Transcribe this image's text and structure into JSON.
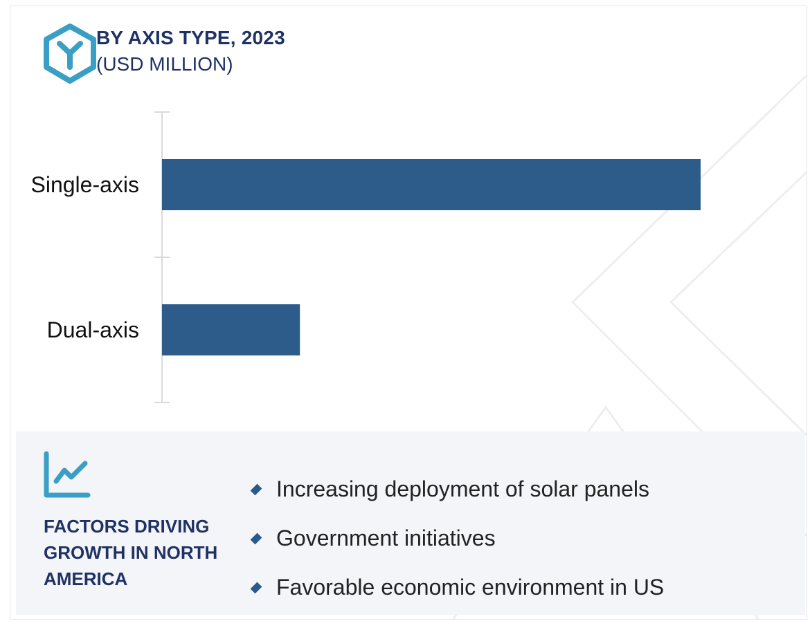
{
  "header": {
    "title": "BY AXIS TYPE, 2023",
    "subtitle": "(USD MILLION)",
    "icon": "axis-cube-icon"
  },
  "colors": {
    "bar": "#2d5b8a",
    "title": "#1f3263",
    "icon": "#3a9fc4",
    "panel": "#f3f5f9"
  },
  "chart_data": {
    "type": "bar",
    "orientation": "horizontal",
    "categories": [
      "Single-axis",
      "Dual-axis"
    ],
    "values": [
      100,
      25.6
    ],
    "xlabel": "",
    "ylabel": "",
    "grid": false,
    "legend": "none"
  },
  "factors": {
    "icon": "line-chart-icon",
    "title": "FACTORS DRIVING GROWTH IN NORTH AMERICA",
    "items": [
      "Increasing deployment of solar panels",
      "Government initiatives",
      "Favorable economic environment in US"
    ]
  }
}
